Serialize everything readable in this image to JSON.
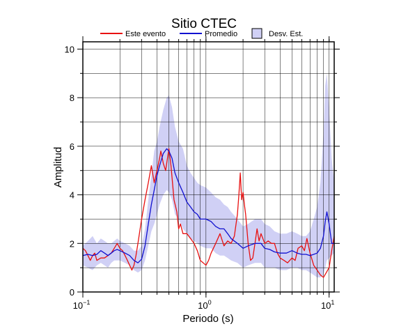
{
  "chart_data": {
    "type": "line",
    "title": "Sitio CTEC",
    "xlabel": "Periodo (s)",
    "ylabel": "Amplitud",
    "x_scale": "log",
    "xlim": [
      0.1,
      11
    ],
    "ylim": [
      0,
      10.3
    ],
    "grid": true,
    "legend_placement": "top-center",
    "x_tick_labels": [
      {
        "value": 0.1,
        "base": "10",
        "exp": "−1"
      },
      {
        "value": 1,
        "base": "10",
        "exp": "0"
      },
      {
        "value": 10,
        "base": "10",
        "exp": "1"
      }
    ],
    "y_ticks": [
      0,
      2,
      4,
      6,
      8,
      10
    ],
    "series": [
      {
        "name": "Este evento",
        "color": "#e81010",
        "x": [
          0.1,
          0.105,
          0.11,
          0.115,
          0.12,
          0.125,
          0.13,
          0.14,
          0.15,
          0.16,
          0.17,
          0.18,
          0.19,
          0.2,
          0.21,
          0.22,
          0.23,
          0.24,
          0.25,
          0.26,
          0.27,
          0.28,
          0.3,
          0.32,
          0.34,
          0.36,
          0.38,
          0.4,
          0.42,
          0.43,
          0.45,
          0.47,
          0.5,
          0.52,
          0.55,
          0.58,
          0.6,
          0.62,
          0.65,
          0.7,
          0.75,
          0.8,
          0.85,
          0.9,
          0.95,
          1.0,
          1.05,
          1.1,
          1.2,
          1.3,
          1.4,
          1.5,
          1.6,
          1.7,
          1.8,
          1.85,
          1.9,
          1.95,
          2.0,
          2.05,
          2.1,
          2.2,
          2.3,
          2.4,
          2.5,
          2.6,
          2.7,
          2.8,
          3.0,
          3.2,
          3.4,
          3.6,
          3.8,
          4.0,
          4.3,
          4.6,
          5.0,
          5.3,
          5.6,
          6.0,
          6.3,
          6.6,
          7.0,
          7.5,
          8.0,
          8.5,
          9.0,
          9.5,
          10.0,
          10.5,
          11.0
        ],
        "y": [
          1.8,
          1.7,
          1.5,
          1.3,
          1.5,
          1.6,
          1.3,
          1.4,
          1.4,
          1.5,
          1.6,
          1.8,
          2.0,
          1.8,
          1.7,
          1.5,
          1.3,
          1.1,
          0.9,
          1.1,
          1.5,
          2.0,
          3.0,
          3.8,
          4.5,
          5.2,
          4.5,
          5.0,
          5.5,
          5.8,
          5.3,
          5.0,
          5.9,
          5.2,
          3.8,
          3.3,
          2.6,
          2.8,
          2.4,
          2.4,
          2.2,
          2.0,
          1.7,
          1.3,
          1.2,
          1.1,
          1.3,
          1.6,
          2.0,
          2.4,
          1.9,
          2.1,
          2.0,
          2.3,
          3.2,
          4.0,
          4.9,
          3.8,
          4.1,
          3.6,
          3.2,
          2.0,
          1.3,
          1.4,
          2.0,
          2.6,
          2.1,
          2.4,
          2.0,
          2.1,
          2.0,
          2.0,
          1.6,
          1.4,
          1.3,
          1.2,
          1.4,
          1.3,
          1.8,
          1.9,
          1.7,
          2.2,
          1.6,
          1.1,
          0.9,
          0.7,
          0.6,
          0.8,
          1.0,
          1.7,
          2.3
        ]
      },
      {
        "name": "Promedio",
        "color": "#1010d0",
        "x": [
          0.1,
          0.11,
          0.12,
          0.13,
          0.14,
          0.15,
          0.16,
          0.17,
          0.18,
          0.19,
          0.2,
          0.22,
          0.24,
          0.26,
          0.28,
          0.3,
          0.32,
          0.34,
          0.36,
          0.38,
          0.4,
          0.42,
          0.45,
          0.48,
          0.5,
          0.53,
          0.56,
          0.6,
          0.65,
          0.7,
          0.75,
          0.8,
          0.85,
          0.9,
          1.0,
          1.1,
          1.2,
          1.3,
          1.4,
          1.5,
          1.6,
          1.8,
          2.0,
          2.2,
          2.5,
          2.8,
          3.0,
          3.3,
          3.6,
          4.0,
          4.5,
          5.0,
          5.5,
          6.0,
          6.5,
          7.0,
          7.5,
          8.0,
          8.5,
          9.0,
          9.3,
          9.6,
          10.0,
          10.5,
          11.0
        ],
        "y": [
          1.5,
          1.55,
          1.5,
          1.55,
          1.7,
          1.6,
          1.5,
          1.6,
          1.7,
          1.75,
          1.7,
          1.6,
          1.5,
          1.3,
          1.2,
          1.35,
          1.9,
          2.8,
          3.6,
          4.2,
          4.8,
          5.2,
          5.7,
          5.9,
          5.8,
          5.5,
          4.9,
          4.5,
          4.1,
          3.7,
          3.5,
          3.3,
          3.2,
          3.0,
          3.0,
          2.9,
          2.7,
          2.6,
          2.6,
          2.4,
          2.2,
          2.0,
          1.8,
          1.9,
          2.0,
          2.0,
          1.8,
          1.75,
          1.65,
          1.6,
          1.6,
          1.7,
          1.6,
          1.55,
          1.55,
          1.5,
          1.55,
          1.6,
          1.8,
          2.3,
          2.9,
          3.3,
          2.8,
          2.0,
          2.0
        ]
      }
    ],
    "band": {
      "name": "Desv. Est.",
      "color": "#d0d0f5",
      "x": [
        0.1,
        0.11,
        0.12,
        0.13,
        0.14,
        0.15,
        0.16,
        0.17,
        0.18,
        0.19,
        0.2,
        0.22,
        0.24,
        0.26,
        0.28,
        0.3,
        0.32,
        0.34,
        0.36,
        0.38,
        0.4,
        0.42,
        0.45,
        0.48,
        0.5,
        0.53,
        0.56,
        0.6,
        0.65,
        0.7,
        0.75,
        0.8,
        0.85,
        0.9,
        1.0,
        1.1,
        1.2,
        1.3,
        1.4,
        1.5,
        1.6,
        1.8,
        2.0,
        2.2,
        2.5,
        2.8,
        3.0,
        3.3,
        3.6,
        4.0,
        4.5,
        5.0,
        5.5,
        6.0,
        6.5,
        7.0,
        7.5,
        8.0,
        8.5,
        9.0,
        9.3,
        9.6,
        10.0,
        10.5,
        11.0
      ],
      "upper": [
        1.9,
        2.1,
        2.3,
        2.0,
        2.2,
        2.1,
        2.0,
        2.0,
        2.1,
        2.2,
        2.1,
        2.0,
        1.9,
        1.7,
        1.7,
        1.9,
        2.6,
        3.8,
        4.8,
        5.8,
        6.2,
        6.8,
        7.5,
        8.0,
        8.1,
        7.6,
        6.8,
        6.2,
        5.9,
        5.2,
        4.9,
        4.7,
        4.5,
        4.4,
        4.3,
        4.1,
        3.9,
        3.8,
        3.6,
        3.5,
        3.3,
        3.0,
        2.7,
        2.8,
        3.0,
        3.0,
        2.8,
        2.7,
        2.5,
        2.4,
        2.4,
        2.5,
        2.4,
        2.3,
        2.3,
        2.5,
        3.0,
        3.5,
        4.5,
        6.5,
        8.5,
        9.0,
        7.5,
        5.5,
        4.5
      ],
      "lower": [
        1.1,
        1.0,
        0.9,
        1.1,
        1.2,
        1.1,
        1.0,
        1.2,
        1.3,
        1.3,
        1.3,
        1.2,
        1.1,
        0.9,
        0.8,
        0.9,
        1.3,
        1.9,
        2.5,
        2.8,
        3.2,
        3.6,
        4.0,
        4.2,
        4.1,
        3.8,
        3.2,
        3.0,
        2.6,
        2.4,
        2.2,
        2.1,
        2.0,
        1.9,
        1.8,
        1.8,
        1.6,
        1.5,
        1.5,
        1.4,
        1.3,
        1.2,
        1.0,
        1.1,
        1.2,
        1.2,
        1.0,
        1.0,
        1.0,
        0.9,
        0.9,
        1.0,
        1.0,
        0.9,
        0.9,
        0.8,
        0.7,
        0.6,
        0.6,
        0.7,
        1.0,
        1.3,
        1.4,
        1.5,
        1.6
      ]
    }
  }
}
